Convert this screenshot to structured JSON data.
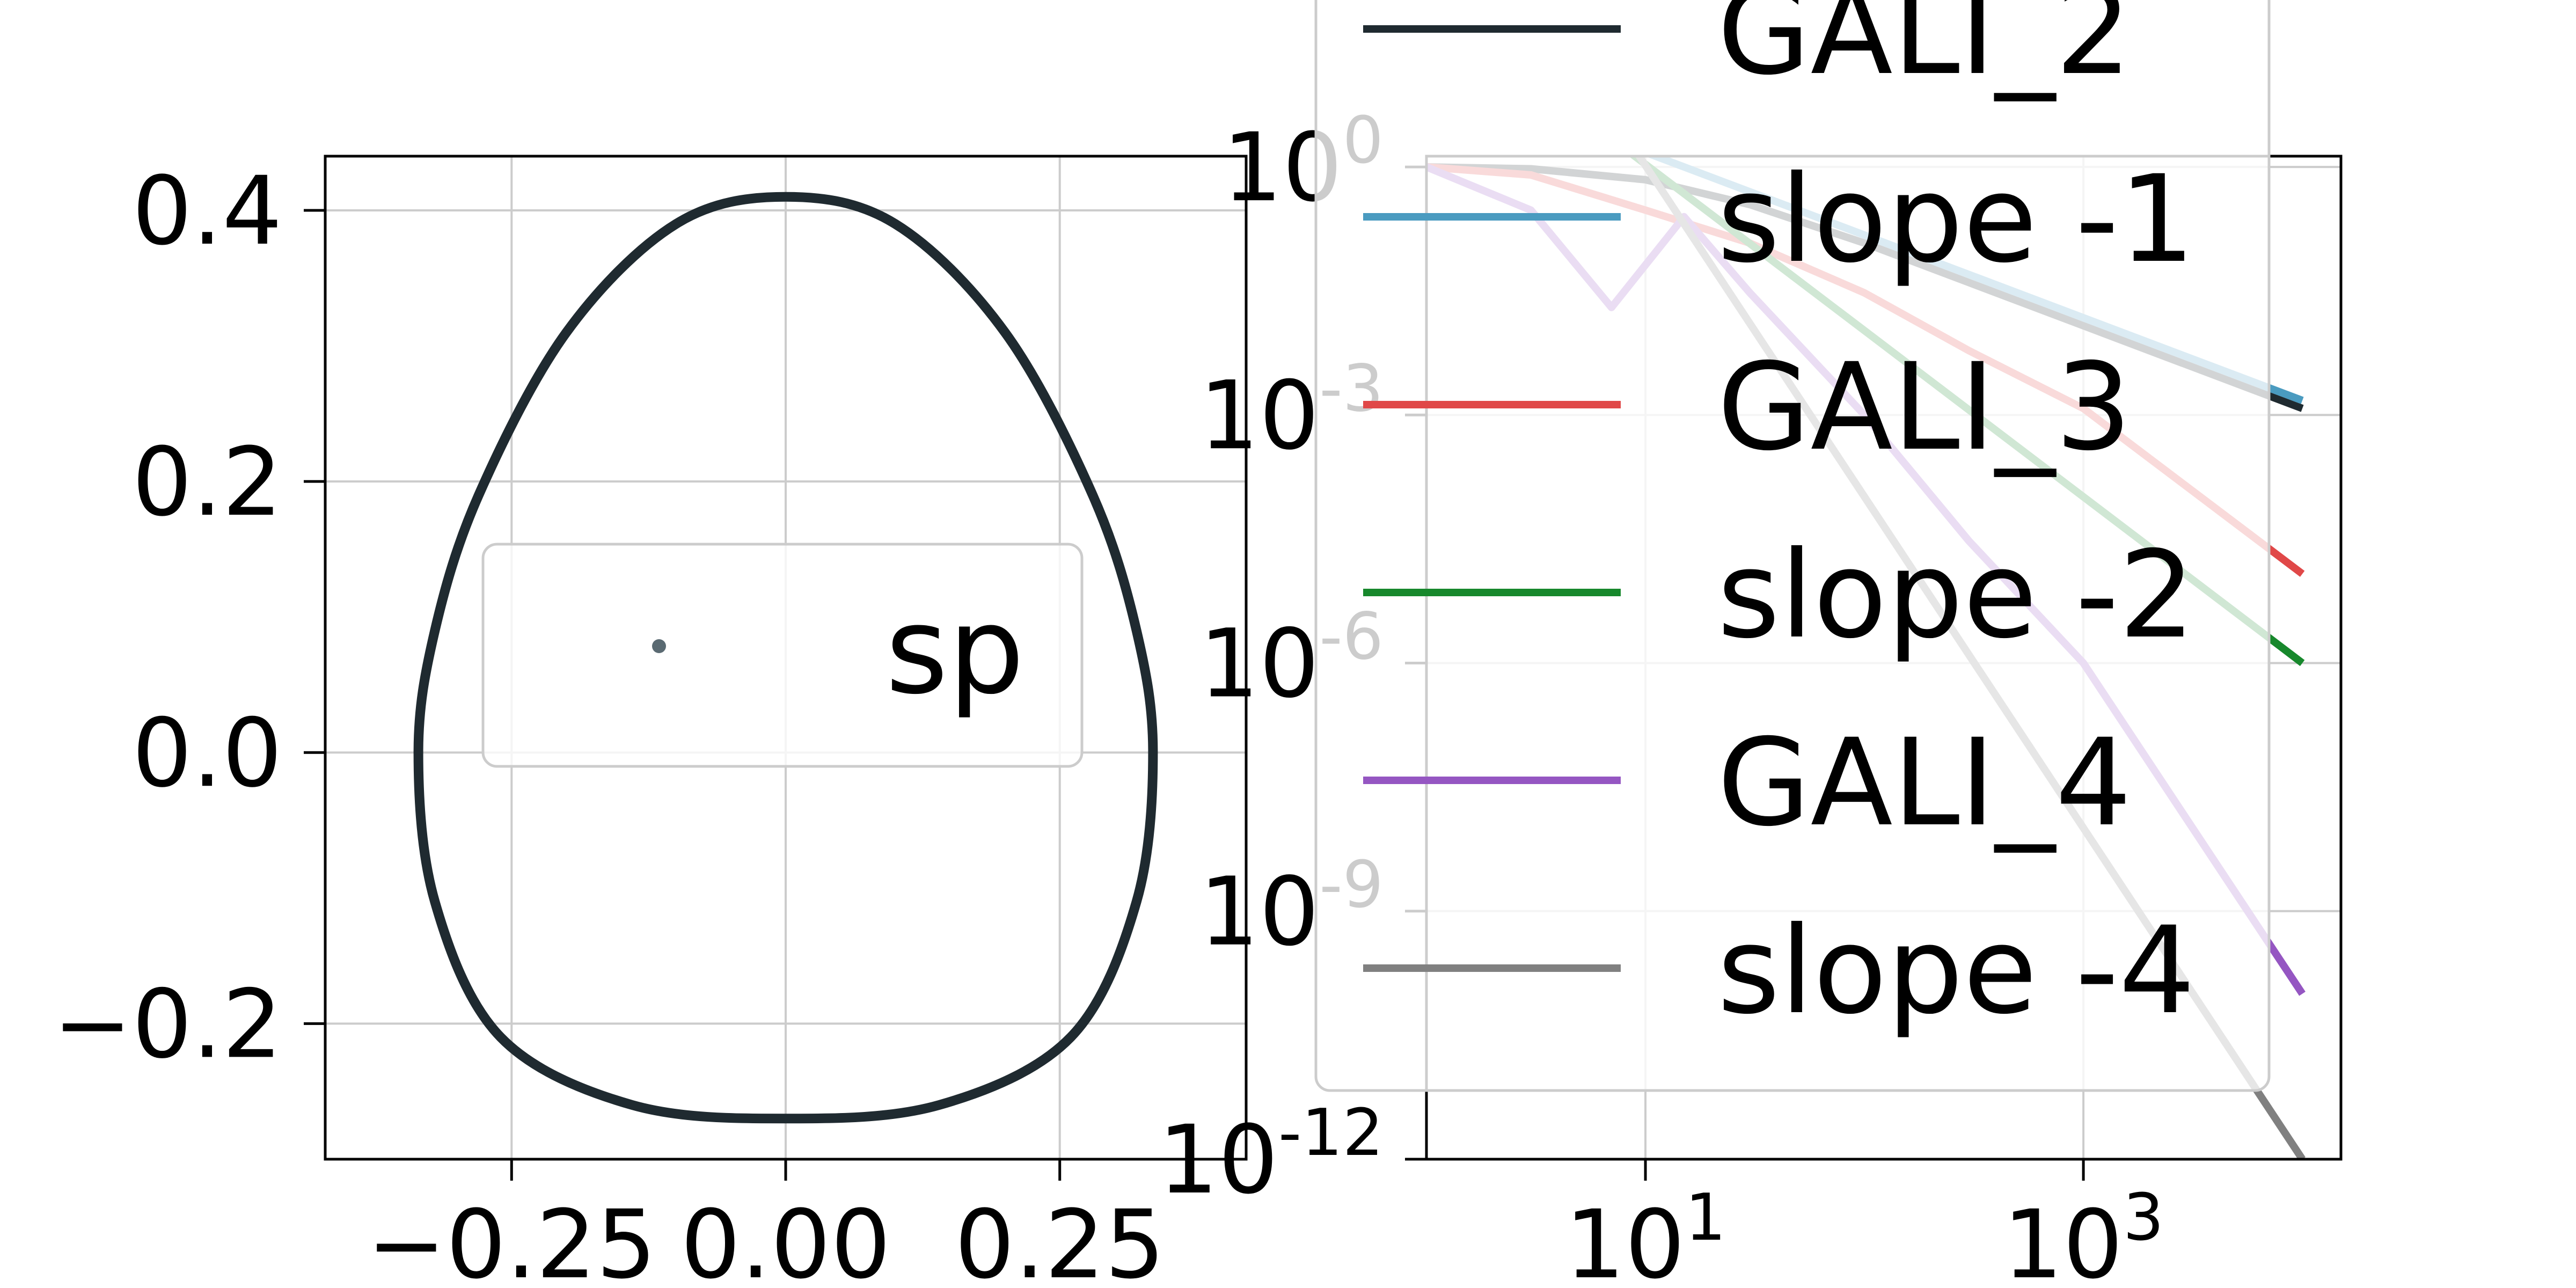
{
  "chart_data": [
    {
      "type": "line",
      "title": "",
      "xlabel": "",
      "ylabel": "",
      "xlim": [
        -0.42,
        0.42
      ],
      "ylim": [
        -0.3,
        0.44
      ],
      "xticks": [
        -0.25,
        0.0,
        0.25
      ],
      "xtick_labels": [
        "−0.25",
        "0.00",
        "0.25"
      ],
      "yticks": [
        -0.2,
        0.0,
        0.2,
        0.4
      ],
      "ytick_labels": [
        "−0.2",
        "0.0",
        "0.2",
        "0.4"
      ],
      "grid": true,
      "series": [
        {
          "kind": "closed-curve",
          "color": "#1f2a30",
          "x": [
            0.0,
            0.1,
            0.2,
            0.28,
            0.32,
            0.335,
            0.32,
            0.26,
            0.14,
            0.0,
            -0.14,
            -0.26,
            -0.32,
            -0.335,
            -0.32,
            -0.28,
            -0.2,
            -0.1,
            0.0
          ],
          "y": [
            0.41,
            0.39,
            0.31,
            0.19,
            0.09,
            0.0,
            -0.11,
            -0.21,
            -0.26,
            -0.27,
            -0.26,
            -0.21,
            -0.11,
            0.0,
            0.09,
            0.19,
            0.31,
            0.39,
            0.41
          ]
        }
      ],
      "legend": {
        "placement": "center-left",
        "entries": [
          {
            "label": "sp",
            "marker": "dot",
            "color": "#5a6a72"
          }
        ]
      }
    },
    {
      "type": "line",
      "title": "",
      "xlabel": "",
      "ylabel": "",
      "xscale": "log",
      "yscale": "log",
      "xlim": [
        1,
        15000
      ],
      "ylim": [
        1e-12,
        1.35
      ],
      "xticks": [
        10,
        1000
      ],
      "xtick_labels": [
        {
          "base": "10",
          "exp": "1"
        },
        {
          "base": "10",
          "exp": "3"
        }
      ],
      "yticks": [
        1,
        0.001,
        1e-06,
        1e-09,
        1e-12
      ],
      "ytick_labels": [
        {
          "base": "10",
          "exp": "0"
        },
        {
          "base": "10",
          "exp": "-3"
        },
        {
          "base": "10",
          "exp": "-6"
        },
        {
          "base": "10",
          "exp": "-9"
        },
        {
          "base": "10",
          "exp": "-12"
        }
      ],
      "grid": true,
      "series": [
        {
          "name": "GALI_2",
          "color": "#1f2a30",
          "x": [
            1,
            3,
            10,
            30,
            100,
            300,
            1000,
            10000
          ],
          "y": [
            1.0,
            0.95,
            0.7,
            0.35,
            0.12,
            0.04,
            0.012,
            0.0012
          ]
        },
        {
          "name": "slope -1",
          "color": "#4a9bc0",
          "x": [
            10,
            10000
          ],
          "y": [
            1.5,
            0.0015
          ]
        },
        {
          "name": "GALI_3",
          "color": "#e04848",
          "x": [
            1,
            3,
            10,
            30,
            100,
            300,
            1000,
            10000
          ],
          "y": [
            1.0,
            0.8,
            0.3,
            0.12,
            0.03,
            0.006,
            0.0012,
            1.2e-05
          ]
        },
        {
          "name": "slope -2",
          "color": "#17882c",
          "x": [
            3.3,
            10000
          ],
          "y": [
            10,
            1e-06
          ]
        },
        {
          "name": "GALI_4",
          "color": "#9556c2",
          "x": [
            1,
            3,
            7,
            15,
            30,
            100,
            300,
            1000,
            10000
          ],
          "y": [
            1.0,
            0.3,
            0.02,
            0.25,
            0.03,
            0.001,
            3e-05,
            1e-06,
            1e-10
          ]
        },
        {
          "name": "slope -4",
          "color": "#808080",
          "x": [
            3.2,
            10000
          ],
          "y": [
            100,
            1e-12
          ]
        }
      ],
      "legend": {
        "placement": "upper-center",
        "entries": [
          {
            "label": "GALI_2",
            "color": "#1f2a30"
          },
          {
            "label": "slope -1",
            "color": "#4a9bc0"
          },
          {
            "label": "GALI_3",
            "color": "#e04848"
          },
          {
            "label": "slope -2",
            "color": "#17882c"
          },
          {
            "label": "GALI_4",
            "color": "#9556c2"
          },
          {
            "label": "slope -4",
            "color": "#808080"
          }
        ]
      }
    }
  ]
}
